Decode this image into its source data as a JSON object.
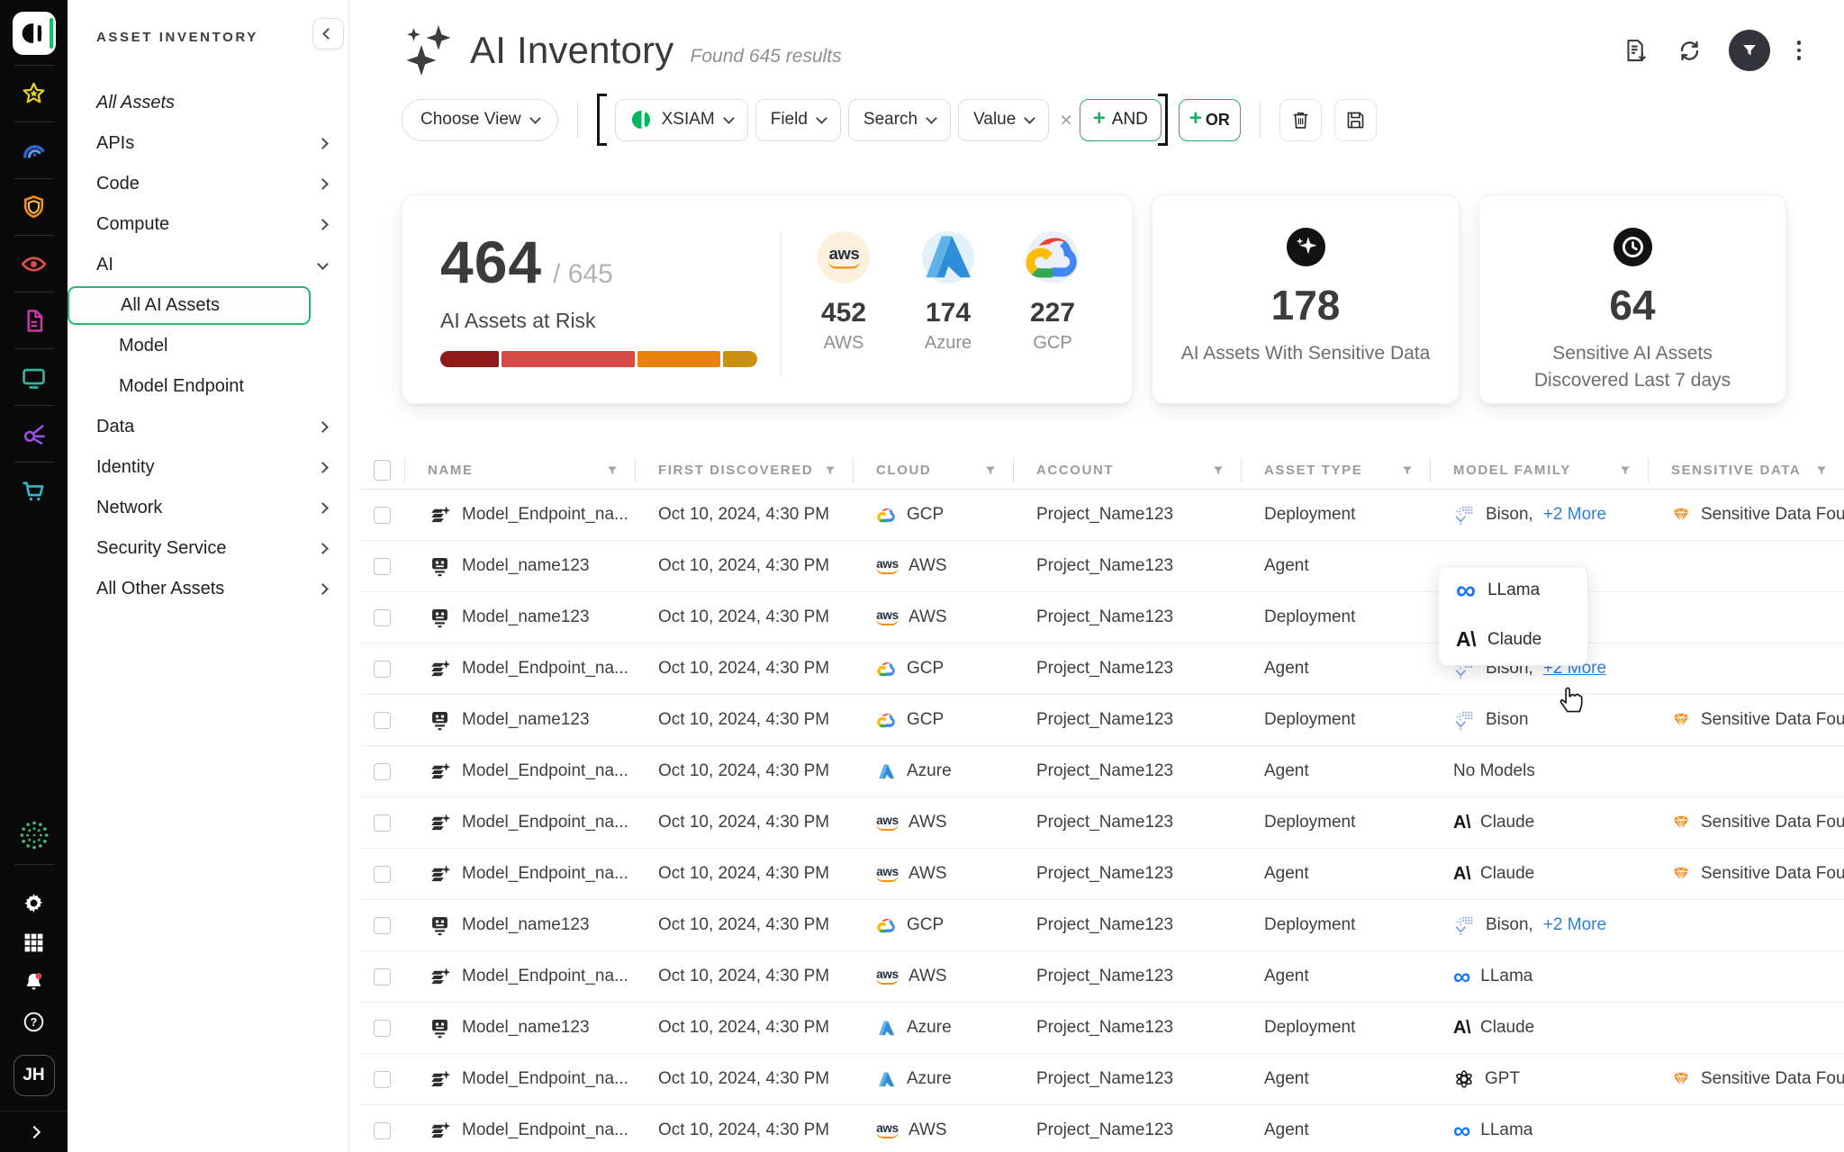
{
  "rail": {
    "logo": "cortex-logo",
    "top_icons": [
      "star-icon",
      "gauge-icon",
      "shield-icon",
      "eye-icon",
      "document-icon",
      "monitor-icon",
      "access-icon",
      "cart-icon"
    ],
    "bottom_logo": "prisma-dots-icon",
    "bottom_icons": [
      "gear-icon",
      "apps-grid-icon",
      "bell-icon",
      "help-icon"
    ],
    "avatar_initials": "JH"
  },
  "sidebar": {
    "title": "ASSET INVENTORY",
    "items": [
      {
        "label": "All Assets",
        "italic": true
      },
      {
        "label": "APIs",
        "chevron": "right"
      },
      {
        "label": "Code",
        "chevron": "right"
      },
      {
        "label": "Compute",
        "chevron": "right"
      },
      {
        "label": "AI",
        "chevron": "down"
      },
      {
        "label": "All AI Assets",
        "child": true,
        "selected": true
      },
      {
        "label": "Model",
        "child": true
      },
      {
        "label": "Model Endpoint",
        "child": true
      },
      {
        "label": "Data",
        "chevron": "right"
      },
      {
        "label": "Identity",
        "chevron": "right"
      },
      {
        "label": "Network",
        "chevron": "right"
      },
      {
        "label": "Security Service",
        "chevron": "right"
      },
      {
        "label": "All Other Assets",
        "chevron": "right"
      }
    ]
  },
  "header": {
    "title": "AI Inventory",
    "results": "Found 645 results"
  },
  "toolbar": {
    "choose_view": "Choose View",
    "source": "XSIAM",
    "field": "Field",
    "search": "Search",
    "value": "Value",
    "remove": "×",
    "and_plus": "+",
    "and_label": "AND",
    "or_plus": "+",
    "or_label": "OR"
  },
  "stats": {
    "risk": {
      "value": "464",
      "total": "/ 645",
      "label": "AI Assets at Risk",
      "bar_segments": [
        {
          "color": "#8E1A1A",
          "pct": 19
        },
        {
          "color": "#D94A47",
          "pct": 43
        },
        {
          "color": "#E8830D",
          "pct": 27
        },
        {
          "color": "#C99110",
          "pct": 11
        }
      ],
      "providers": [
        {
          "icon": "aws-logo",
          "count": "452",
          "label": "AWS",
          "bg": "#FBF0DC"
        },
        {
          "icon": "azure-logo",
          "count": "174",
          "label": "Azure",
          "bg": "#E2F0FA"
        },
        {
          "icon": "gcp-logo",
          "count": "227",
          "label": "GCP",
          "bg": "#E9F0FB"
        }
      ]
    },
    "sensitive": {
      "icon": "sparkle-circle-icon",
      "value": "178",
      "label": "AI Assets With Sensitive Data"
    },
    "recent": {
      "icon": "clock-circle-icon",
      "value": "64",
      "label_lines": [
        "Sensitive AI Assets",
        "Discovered Last 7 days"
      ]
    }
  },
  "table": {
    "columns": [
      "NAME",
      "FIRST DISCOVERED",
      "CLOUD",
      "ACCOUNT",
      "ASSET TYPE",
      "MODEL FAMILY",
      "SENSITIVE DATA"
    ],
    "rows": [
      {
        "name": "Model_Endpoint_na...",
        "icon": "model-endpoint-icon",
        "discovered": "Oct 10, 2024, 4:30 PM",
        "cloud": "GCP",
        "cloud_icon": "gcp-logo",
        "account": "Project_Name123",
        "type": "Deployment",
        "model": {
          "icon": "bison-logo",
          "label": "Bison,",
          "more": "+2 More"
        },
        "sensitive": "Sensitive Data Found"
      },
      {
        "name": "Model_name123",
        "icon": "model-icon",
        "discovered": "Oct 10, 2024, 4:30 PM",
        "cloud": "AWS",
        "cloud_icon": "aws-logo",
        "account": "Project_Name123",
        "type": "Agent",
        "model": null,
        "sensitive": null
      },
      {
        "name": "Model_name123",
        "icon": "model-icon",
        "discovered": "Oct 10, 2024, 4:30 PM",
        "cloud": "AWS",
        "cloud_icon": "aws-logo",
        "account": "Project_Name123",
        "type": "Deployment",
        "model": null,
        "sensitive": null
      },
      {
        "name": "Model_Endpoint_na...",
        "icon": "model-endpoint-icon",
        "discovered": "Oct 10, 2024, 4:30 PM",
        "cloud": "GCP",
        "cloud_icon": "gcp-logo",
        "account": "Project_Name123",
        "type": "Agent",
        "model": {
          "icon": "bison-logo",
          "label": "Bison,",
          "more": "+2 More",
          "hovered": true
        },
        "sensitive": null
      },
      {
        "name": "Model_name123",
        "icon": "model-icon",
        "discovered": "Oct 10, 2024, 4:30 PM",
        "cloud": "GCP",
        "cloud_icon": "gcp-logo",
        "account": "Project_Name123",
        "type": "Deployment",
        "model": {
          "icon": "bison-logo",
          "label": "Bison"
        },
        "sensitive": "Sensitive Data Found"
      },
      {
        "name": "Model_Endpoint_na...",
        "icon": "model-endpoint-icon",
        "discovered": "Oct 10, 2024, 4:30 PM",
        "cloud": "Azure",
        "cloud_icon": "azure-logo",
        "account": "Project_Name123",
        "type": "Agent",
        "model": {
          "label": "No Models"
        },
        "sensitive": null
      },
      {
        "name": "Model_Endpoint_na...",
        "icon": "model-endpoint-icon",
        "discovered": "Oct 10, 2024, 4:30 PM",
        "cloud": "AWS",
        "cloud_icon": "aws-logo",
        "account": "Project_Name123",
        "type": "Deployment",
        "model": {
          "icon": "anthropic-logo",
          "label": "Claude"
        },
        "sensitive": "Sensitive Data Found"
      },
      {
        "name": "Model_Endpoint_na...",
        "icon": "model-endpoint-icon",
        "discovered": "Oct 10, 2024, 4:30 PM",
        "cloud": "AWS",
        "cloud_icon": "aws-logo",
        "account": "Project_Name123",
        "type": "Agent",
        "model": {
          "icon": "anthropic-logo",
          "label": "Claude"
        },
        "sensitive": "Sensitive Data Found"
      },
      {
        "name": "Model_name123",
        "icon": "model-icon",
        "discovered": "Oct 10, 2024, 4:30 PM",
        "cloud": "GCP",
        "cloud_icon": "gcp-logo",
        "account": "Project_Name123",
        "type": "Deployment",
        "model": {
          "icon": "bison-logo",
          "label": "Bison,",
          "more": "+2 More"
        },
        "sensitive": null
      },
      {
        "name": "Model_Endpoint_na...",
        "icon": "model-endpoint-icon",
        "discovered": "Oct 10, 2024, 4:30 PM",
        "cloud": "AWS",
        "cloud_icon": "aws-logo",
        "account": "Project_Name123",
        "type": "Agent",
        "model": {
          "icon": "meta-logo",
          "label": "LLama"
        },
        "sensitive": null
      },
      {
        "name": "Model_name123",
        "icon": "model-icon",
        "discovered": "Oct 10, 2024, 4:30 PM",
        "cloud": "Azure",
        "cloud_icon": "azure-logo",
        "account": "Project_Name123",
        "type": "Deployment",
        "model": {
          "icon": "anthropic-logo",
          "label": "Claude"
        },
        "sensitive": null
      },
      {
        "name": "Model_Endpoint_na...",
        "icon": "model-endpoint-icon",
        "discovered": "Oct 10, 2024, 4:30 PM",
        "cloud": "Azure",
        "cloud_icon": "azure-logo",
        "account": "Project_Name123",
        "type": "Agent",
        "model": {
          "icon": "openai-logo",
          "label": "GPT"
        },
        "sensitive": "Sensitive Data Found"
      },
      {
        "name": "Model_Endpoint_na...",
        "icon": "model-endpoint-icon",
        "discovered": "Oct 10, 2024, 4:30 PM",
        "cloud": "AWS",
        "cloud_icon": "aws-logo",
        "account": "Project_Name123",
        "type": "Agent",
        "model": {
          "icon": "meta-logo",
          "label": "LLama"
        },
        "sensitive": null
      }
    ]
  },
  "popup": {
    "items": [
      {
        "icon": "meta-logo",
        "label": "LLama"
      },
      {
        "icon": "anthropic-logo",
        "label": "Claude"
      }
    ]
  },
  "colors": {
    "accent_green": "#22AC5E",
    "selected_green": "#2BB673",
    "link_blue": "#2E7FD4",
    "sensitive_orange": "#F28C1E",
    "bison_blue": "#93B2EA"
  }
}
